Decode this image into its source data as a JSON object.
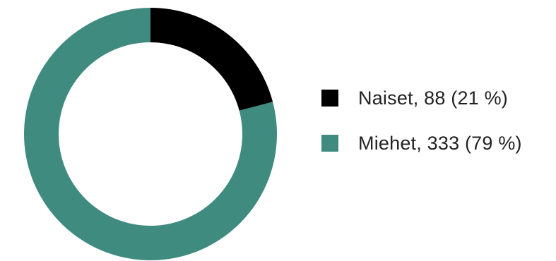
{
  "chart_data": {
    "type": "pie",
    "variant": "donut",
    "categories": [
      "Naiset",
      "Miehet"
    ],
    "values": [
      88,
      333
    ],
    "percentages": [
      21,
      79
    ],
    "colors": [
      "#000000",
      "#3f8b80"
    ],
    "legend_position": "right",
    "legend": [
      {
        "label": "Naiset, 88 (21 %)",
        "color": "#000000"
      },
      {
        "label": "Miehet, 333 (79 %)",
        "color": "#3f8b80"
      }
    ]
  }
}
